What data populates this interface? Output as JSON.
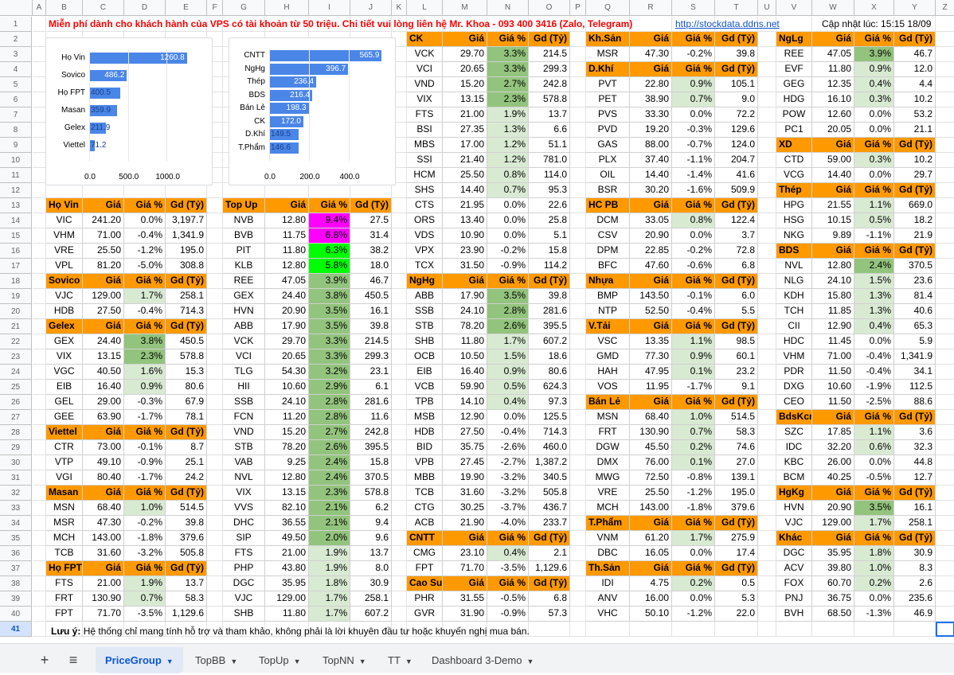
{
  "sheet": {
    "columns": [
      "A",
      "B",
      "C",
      "D",
      "E",
      "F",
      "G",
      "H",
      "I",
      "J",
      "K",
      "L",
      "M",
      "N",
      "O",
      "P",
      "Q",
      "R",
      "S",
      "T",
      "U",
      "V",
      "W",
      "X",
      "Y",
      "Z"
    ],
    "row_numbers": [
      "1",
      "2",
      "3",
      "4",
      "5",
      "6",
      "7",
      "8",
      "9",
      "10",
      "11",
      "12",
      "13",
      "14",
      "15",
      "16",
      "17",
      "18",
      "19",
      "20",
      "21",
      "22",
      "23",
      "24",
      "25",
      "26",
      "27",
      "28",
      "29",
      "30",
      "31",
      "32",
      "33",
      "34",
      "35",
      "36",
      "37",
      "38",
      "39",
      "40",
      "41"
    ],
    "banner": "Miễn phí dành cho khách hành của VPS có tài khoản từ 50 triệu. Chi tiết vui lòng liên hệ Mr. Khoa - 093 400 3416 (Zalo, Telegram)",
    "link": "http://stockdata.ddns.net",
    "updated": "Cập nhật lúc: 15:15 18/09",
    "note_bold": "Lưu ý:",
    "note": " Hệ thống chỉ mang tính hỗ trợ và tham khảo, không phải là lời khuyên đầu tư hoặc khuyến nghị mua bán."
  },
  "header_labels": {
    "price": "Giá",
    "pct": "Giá %",
    "gd": "Gd (Tỷ)"
  },
  "chart_data": [
    {
      "type": "bar",
      "orientation": "horizontal",
      "categories": [
        "Họ Vin",
        "Sovico",
        "Họ FPT",
        "Masan",
        "Gelex",
        "Viettel"
      ],
      "values": [
        1260.8,
        486.2,
        400.5,
        359.9,
        211.9,
        71.2
      ],
      "value_labels": [
        "1260.8",
        "486.2",
        "400.5",
        "359.9",
        "211.9",
        "71.2"
      ],
      "xticks": [
        "0.0",
        "500.0",
        "1000.0"
      ],
      "xlim": [
        0,
        1500
      ]
    },
    {
      "type": "bar",
      "orientation": "horizontal",
      "categories": [
        "CNTT",
        "NgHg",
        "Thép",
        "BDS",
        "Bán Lẻ",
        "CK",
        "D.Khí",
        "T.Phẩm"
      ],
      "values": [
        565.9,
        396.7,
        236.4,
        216.4,
        198.3,
        172.0,
        149.5,
        146.6
      ],
      "value_labels": [
        "565.9",
        "396.7",
        "236.4",
        "216.4",
        "198.3",
        "172.0",
        "149.5",
        "146.6"
      ],
      "xticks": [
        "0.0",
        "200.0",
        "400.0"
      ],
      "xlim": [
        0,
        600
      ]
    }
  ],
  "groups_col1": [
    {
      "name": "Họ Vin",
      "rows": [
        [
          "VIC",
          "241.20",
          "0.0%",
          "3,197.7"
        ],
        [
          "VHM",
          "71.00",
          "-0.4%",
          "1,341.9"
        ],
        [
          "VRE",
          "25.50",
          "-1.2%",
          "195.0"
        ],
        [
          "VPL",
          "81.20",
          "-5.0%",
          "308.8"
        ]
      ]
    },
    {
      "name": "Sovico",
      "rows": [
        [
          "VJC",
          "129.00",
          "1.7%",
          "258.1"
        ],
        [
          "HDB",
          "27.50",
          "-0.4%",
          "714.3"
        ]
      ]
    },
    {
      "name": "Gelex",
      "rows": [
        [
          "GEX",
          "24.40",
          "3.8%",
          "450.5"
        ],
        [
          "VIX",
          "13.15",
          "2.3%",
          "578.8"
        ],
        [
          "VGC",
          "40.50",
          "1.6%",
          "15.3"
        ],
        [
          "EIB",
          "16.40",
          "0.9%",
          "80.6"
        ],
        [
          "GEL",
          "29.00",
          "-0.3%",
          "67.9"
        ],
        [
          "GEE",
          "63.90",
          "-1.7%",
          "78.1"
        ]
      ]
    },
    {
      "name": "Viettel",
      "rows": [
        [
          "CTR",
          "73.00",
          "-0.1%",
          "8.7"
        ],
        [
          "VTP",
          "49.10",
          "-0.9%",
          "25.1"
        ],
        [
          "VGI",
          "80.40",
          "-1.7%",
          "24.2"
        ]
      ]
    },
    {
      "name": "Masan",
      "rows": [
        [
          "MSN",
          "68.40",
          "1.0%",
          "514.5"
        ],
        [
          "MSR",
          "47.30",
          "-0.2%",
          "39.8"
        ],
        [
          "MCH",
          "143.00",
          "-1.8%",
          "379.6"
        ],
        [
          "TCB",
          "31.60",
          "-3.2%",
          "505.8"
        ]
      ]
    },
    {
      "name": "Họ FPT",
      "rows": [
        [
          "FTS",
          "21.00",
          "1.9%",
          "13.7"
        ],
        [
          "FRT",
          "130.90",
          "0.7%",
          "58.3"
        ],
        [
          "FPT",
          "71.70",
          "-3.5%",
          "1,129.6"
        ]
      ]
    }
  ],
  "groups_col2": [
    {
      "name": "Top Up",
      "rows": [
        [
          "NVB",
          "12.80",
          "9.4%",
          "27.5"
        ],
        [
          "BVB",
          "11.75",
          "6.8%",
          "31.4"
        ],
        [
          "PIT",
          "11.80",
          "6.3%",
          "38.2"
        ],
        [
          "KLB",
          "12.80",
          "5.8%",
          "18.0"
        ],
        [
          "REE",
          "47.05",
          "3.9%",
          "46.7"
        ],
        [
          "GEX",
          "24.40",
          "3.8%",
          "450.5"
        ],
        [
          "HVN",
          "20.90",
          "3.5%",
          "16.1"
        ],
        [
          "ABB",
          "17.90",
          "3.5%",
          "39.8"
        ],
        [
          "VCK",
          "29.70",
          "3.3%",
          "214.5"
        ],
        [
          "VCI",
          "20.65",
          "3.3%",
          "299.3"
        ],
        [
          "TLG",
          "54.30",
          "3.2%",
          "23.1"
        ],
        [
          "HII",
          "10.60",
          "2.9%",
          "6.1"
        ],
        [
          "SSB",
          "24.10",
          "2.8%",
          "281.6"
        ],
        [
          "FCN",
          "11.20",
          "2.8%",
          "11.6"
        ],
        [
          "VND",
          "15.20",
          "2.7%",
          "242.8"
        ],
        [
          "STB",
          "78.20",
          "2.6%",
          "395.5"
        ],
        [
          "VAB",
          "9.25",
          "2.4%",
          "15.8"
        ],
        [
          "NVL",
          "12.80",
          "2.4%",
          "370.5"
        ],
        [
          "VIX",
          "13.15",
          "2.3%",
          "578.8"
        ],
        [
          "VVS",
          "82.10",
          "2.1%",
          "6.2"
        ],
        [
          "DHC",
          "36.55",
          "2.1%",
          "9.4"
        ],
        [
          "SIP",
          "49.50",
          "2.0%",
          "9.6"
        ],
        [
          "FTS",
          "21.00",
          "1.9%",
          "13.7"
        ],
        [
          "PHP",
          "43.80",
          "1.9%",
          "8.0"
        ],
        [
          "DGC",
          "35.95",
          "1.8%",
          "30.9"
        ],
        [
          "VJC",
          "129.00",
          "1.7%",
          "258.1"
        ],
        [
          "SHB",
          "11.80",
          "1.7%",
          "607.2"
        ]
      ]
    }
  ],
  "groups_col3": [
    {
      "name": "CK",
      "rows": [
        [
          "VCK",
          "29.70",
          "3.3%",
          "214.5"
        ],
        [
          "VCI",
          "20.65",
          "3.3%",
          "299.3"
        ],
        [
          "VND",
          "15.20",
          "2.7%",
          "242.8"
        ],
        [
          "VIX",
          "13.15",
          "2.3%",
          "578.8"
        ],
        [
          "FTS",
          "21.00",
          "1.9%",
          "13.7"
        ],
        [
          "BSI",
          "27.35",
          "1.3%",
          "6.6"
        ],
        [
          "MBS",
          "17.00",
          "1.2%",
          "51.1"
        ],
        [
          "SSI",
          "21.40",
          "1.2%",
          "781.0"
        ],
        [
          "HCM",
          "25.50",
          "0.8%",
          "114.0"
        ],
        [
          "SHS",
          "14.40",
          "0.7%",
          "95.3"
        ],
        [
          "CTS",
          "21.95",
          "0.0%",
          "22.6"
        ],
        [
          "ORS",
          "13.40",
          "0.0%",
          "25.8"
        ],
        [
          "VDS",
          "10.90",
          "0.0%",
          "5.1"
        ],
        [
          "VPX",
          "23.90",
          "-0.2%",
          "15.8"
        ],
        [
          "TCX",
          "31.50",
          "-0.9%",
          "114.2"
        ]
      ]
    },
    {
      "name": "NgHg",
      "rows": [
        [
          "ABB",
          "17.90",
          "3.5%",
          "39.8"
        ],
        [
          "SSB",
          "24.10",
          "2.8%",
          "281.6"
        ],
        [
          "STB",
          "78.20",
          "2.6%",
          "395.5"
        ],
        [
          "SHB",
          "11.80",
          "1.7%",
          "607.2"
        ],
        [
          "OCB",
          "10.50",
          "1.5%",
          "18.6"
        ],
        [
          "EIB",
          "16.40",
          "0.9%",
          "80.6"
        ],
        [
          "VCB",
          "59.90",
          "0.5%",
          "624.3"
        ],
        [
          "TPB",
          "14.10",
          "0.4%",
          "97.3"
        ],
        [
          "MSB",
          "12.90",
          "0.0%",
          "125.5"
        ],
        [
          "HDB",
          "27.50",
          "-0.4%",
          "714.3"
        ],
        [
          "BID",
          "35.75",
          "-2.6%",
          "460.0"
        ],
        [
          "VPB",
          "27.45",
          "-2.7%",
          "1,387.2"
        ],
        [
          "MBB",
          "19.90",
          "-3.2%",
          "340.5"
        ],
        [
          "TCB",
          "31.60",
          "-3.2%",
          "505.8"
        ],
        [
          "CTG",
          "30.25",
          "-3.7%",
          "436.7"
        ],
        [
          "ACB",
          "21.90",
          "-4.0%",
          "233.7"
        ]
      ]
    },
    {
      "name": "CNTT",
      "rows": [
        [
          "CMG",
          "23.10",
          "0.4%",
          "2.1"
        ],
        [
          "FPT",
          "71.70",
          "-3.5%",
          "1,129.6"
        ]
      ]
    },
    {
      "name": "Cao Su",
      "rows": [
        [
          "PHR",
          "31.55",
          "-0.5%",
          "6.8"
        ],
        [
          "GVR",
          "31.90",
          "-0.9%",
          "57.3"
        ]
      ]
    }
  ],
  "groups_col4": [
    {
      "name": "Kh.Sản",
      "rows": [
        [
          "MSR",
          "47.30",
          "-0.2%",
          "39.8"
        ]
      ]
    },
    {
      "name": "D.Khí",
      "rows": [
        [
          "PVT",
          "22.80",
          "0.9%",
          "105.1"
        ],
        [
          "PET",
          "38.90",
          "0.7%",
          "9.0"
        ],
        [
          "PVS",
          "33.30",
          "0.0%",
          "72.2"
        ],
        [
          "PVD",
          "19.20",
          "-0.3%",
          "129.6"
        ],
        [
          "GAS",
          "88.00",
          "-0.7%",
          "124.0"
        ],
        [
          "PLX",
          "37.40",
          "-1.1%",
          "204.7"
        ],
        [
          "OIL",
          "14.40",
          "-1.4%",
          "41.6"
        ],
        [
          "BSR",
          "30.20",
          "-1.6%",
          "509.9"
        ]
      ]
    },
    {
      "name": "HC PB",
      "rows": [
        [
          "DCM",
          "33.05",
          "0.8%",
          "122.4"
        ],
        [
          "CSV",
          "20.90",
          "0.0%",
          "3.7"
        ],
        [
          "DPM",
          "22.85",
          "-0.2%",
          "72.8"
        ],
        [
          "BFC",
          "47.60",
          "-0.6%",
          "6.8"
        ]
      ]
    },
    {
      "name": "Nhựa",
      "rows": [
        [
          "BMP",
          "143.50",
          "-0.1%",
          "6.0"
        ],
        [
          "NTP",
          "52.50",
          "-0.4%",
          "5.5"
        ]
      ]
    },
    {
      "name": "V.Tải",
      "rows": [
        [
          "VSC",
          "13.35",
          "1.1%",
          "98.5"
        ],
        [
          "GMD",
          "77.30",
          "0.9%",
          "60.1"
        ],
        [
          "HAH",
          "47.95",
          "0.1%",
          "23.2"
        ],
        [
          "VOS",
          "11.95",
          "-1.7%",
          "9.1"
        ]
      ]
    },
    {
      "name": "Bán Lẻ",
      "rows": [
        [
          "MSN",
          "68.40",
          "1.0%",
          "514.5"
        ],
        [
          "FRT",
          "130.90",
          "0.7%",
          "58.3"
        ],
        [
          "DGW",
          "45.50",
          "0.2%",
          "74.6"
        ],
        [
          "DMX",
          "76.00",
          "0.1%",
          "27.0"
        ],
        [
          "MWG",
          "72.50",
          "-0.8%",
          "139.1"
        ],
        [
          "VRE",
          "25.50",
          "-1.2%",
          "195.0"
        ],
        [
          "MCH",
          "143.00",
          "-1.8%",
          "379.6"
        ]
      ]
    },
    {
      "name": "T.Phẩm",
      "rows": [
        [
          "VNM",
          "61.20",
          "1.7%",
          "275.9"
        ],
        [
          "DBC",
          "16.05",
          "0.0%",
          "17.4"
        ]
      ]
    },
    {
      "name": "Th.Sản",
      "rows": [
        [
          "IDI",
          "4.75",
          "0.2%",
          "0.5"
        ],
        [
          "ANV",
          "16.00",
          "0.0%",
          "5.3"
        ],
        [
          "VHC",
          "50.10",
          "-1.2%",
          "22.0"
        ]
      ]
    }
  ],
  "groups_col5": [
    {
      "name": "NgLg",
      "rows": [
        [
          "REE",
          "47.05",
          "3.9%",
          "46.7"
        ],
        [
          "EVF",
          "11.80",
          "0.9%",
          "12.0"
        ],
        [
          "GEG",
          "12.35",
          "0.4%",
          "4.4"
        ],
        [
          "HDG",
          "16.10",
          "0.3%",
          "10.2"
        ],
        [
          "POW",
          "12.60",
          "0.0%",
          "53.2"
        ],
        [
          "PC1",
          "20.05",
          "0.0%",
          "21.1"
        ]
      ]
    },
    {
      "name": "XD",
      "rows": [
        [
          "CTD",
          "59.00",
          "0.3%",
          "10.2"
        ],
        [
          "VCG",
          "14.40",
          "0.0%",
          "29.7"
        ]
      ]
    },
    {
      "name": "Thép",
      "rows": [
        [
          "HPG",
          "21.55",
          "1.1%",
          "669.0"
        ],
        [
          "HSG",
          "10.15",
          "0.5%",
          "18.2"
        ],
        [
          "NKG",
          "9.89",
          "-1.1%",
          "21.9"
        ]
      ]
    },
    {
      "name": "BDS",
      "rows": [
        [
          "NVL",
          "12.80",
          "2.4%",
          "370.5"
        ],
        [
          "NLG",
          "24.10",
          "1.5%",
          "23.6"
        ],
        [
          "KDH",
          "15.80",
          "1.3%",
          "81.4"
        ],
        [
          "TCH",
          "11.85",
          "1.3%",
          "40.6"
        ],
        [
          "CII",
          "12.90",
          "0.4%",
          "65.3"
        ],
        [
          "HDC",
          "11.45",
          "0.0%",
          "5.9"
        ],
        [
          "VHM",
          "71.00",
          "-0.4%",
          "1,341.9"
        ],
        [
          "PDR",
          "11.50",
          "-0.4%",
          "34.1"
        ],
        [
          "DXG",
          "10.60",
          "-1.9%",
          "112.5"
        ],
        [
          "CEO",
          "11.50",
          "-2.5%",
          "88.6"
        ]
      ]
    },
    {
      "name": "BdsKcn",
      "rows": [
        [
          "SZC",
          "17.85",
          "1.1%",
          "3.6"
        ],
        [
          "IDC",
          "32.20",
          "0.6%",
          "32.3"
        ],
        [
          "KBC",
          "26.00",
          "0.0%",
          "44.8"
        ],
        [
          "BCM",
          "40.25",
          "-0.5%",
          "12.7"
        ]
      ]
    },
    {
      "name": "HgKg",
      "rows": [
        [
          "HVN",
          "20.90",
          "3.5%",
          "16.1"
        ],
        [
          "VJC",
          "129.00",
          "1.7%",
          "258.1"
        ]
      ]
    },
    {
      "name": "Khác",
      "rows": [
        [
          "DGC",
          "35.95",
          "1.8%",
          "30.9"
        ],
        [
          "ACV",
          "39.80",
          "1.0%",
          "8.3"
        ],
        [
          "FOX",
          "60.70",
          "0.2%",
          "2.6"
        ],
        [
          "PNJ",
          "36.75",
          "0.0%",
          "235.6"
        ],
        [
          "BVH",
          "68.50",
          "-1.3%",
          "46.9"
        ]
      ]
    }
  ],
  "tabs": {
    "add": "+",
    "menu": "≡",
    "items": [
      "PriceGroup",
      "TopBB",
      "TopUp",
      "TopNN",
      "TT",
      "Dashboard 3-Demo"
    ]
  },
  "colors": {
    "header_orange": "#ff9900",
    "green_strong": "#93c47d",
    "green_light": "#d9ead3",
    "magenta": "#ff00ff",
    "bright_green": "#00ff00",
    "bar_blue": "#4a86e8",
    "banner_red": "#ff0000"
  }
}
